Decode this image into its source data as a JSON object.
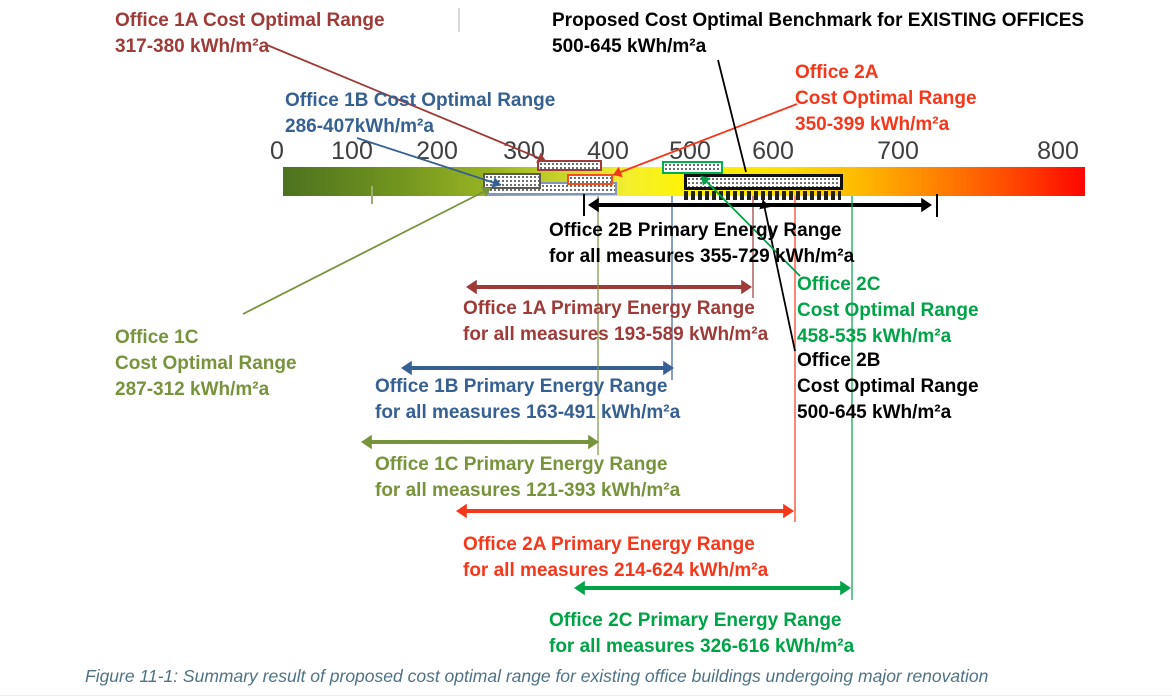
{
  "figure": {
    "caption": "Figure 11-1:  Summary result of proposed cost optimal range for existing office buildings undergoing major renovation"
  },
  "chart_data": {
    "type": "range-bar",
    "title": "Summary result of proposed cost optimal range for existing office buildings undergoing major renovation",
    "axis": {
      "min": 0,
      "max": 800,
      "unit": "kWh/m²a",
      "ticks": [
        0,
        100,
        200,
        300,
        400,
        500,
        600,
        700,
        800
      ]
    },
    "scale_gradient": [
      "#4d721f",
      "#9cb723",
      "#fff500",
      "#ffb900",
      "#fe0500"
    ],
    "benchmark": {
      "name": "Proposed Cost Optimal Benchmark for EXISTING OFFICES",
      "min": 500,
      "max": 645,
      "color": "#000000",
      "label_lines": [
        "Proposed Cost Optimal Benchmark for EXISTING OFFICES",
        "500-645 kWh/m²a"
      ]
    },
    "series": [
      {
        "office": "Office 1A",
        "color": "#9e3a38",
        "box_border": "#9e3a38",
        "cost_optimal": {
          "min": 317,
          "max": 380,
          "label_lines": [
            "Office 1A Cost Optimal Range",
            "317-380 kWh/m²a"
          ]
        },
        "primary_energy": {
          "min": 193,
          "max": 589,
          "label_lines": [
            "Office 1A Primary Energy Range",
            "for all measures 193-589 kWh/m²a"
          ]
        }
      },
      {
        "office": "Office 1B",
        "color": "#366092",
        "box_border": "#8096ba",
        "cost_optimal": {
          "min": 286,
          "max": 407,
          "label_lines": [
            "Office 1B Cost Optimal Range",
            "286-407kWh/m²a"
          ]
        },
        "primary_energy": {
          "min": 163,
          "max": 491,
          "label_lines": [
            "Office 1B Primary Energy Range",
            "for all measures 163-491 kWh/m²a"
          ]
        }
      },
      {
        "office": "Office 1C",
        "color": "#77933c",
        "box_border": "#5a5a52",
        "cost_optimal": {
          "min": 287,
          "max": 312,
          "label_lines": [
            "Office 1C",
            "Cost Optimal Range",
            "287-312 kWh/m²a"
          ]
        },
        "primary_energy": {
          "min": 121,
          "max": 393,
          "label_lines": [
            "Office 1C Primary Energy Range",
            "for all measures 121-393 kWh/m²a"
          ]
        }
      },
      {
        "office": "Office 2A",
        "color": "#f5371c",
        "box_border": "#f5501c",
        "cost_optimal": {
          "min": 350,
          "max": 399,
          "label_lines": [
            "Office 2A",
            "Cost Optimal Range",
            "350-399 kWh/m²a"
          ]
        },
        "primary_energy": {
          "min": 214,
          "max": 624,
          "label_lines": [
            "Office 2A Primary Energy Range",
            "for all measures 214-624 kWh/m²a"
          ]
        }
      },
      {
        "office": "Office 2B",
        "color": "#000000",
        "box_border": "#111111",
        "cost_optimal": {
          "min": 500,
          "max": 645,
          "label_lines": [
            "Office 2B",
            "Cost Optimal Range",
            "500-645 kWh/m²a"
          ]
        },
        "primary_energy": {
          "min": 355,
          "max": 729,
          "label_lines": [
            "Office 2B Primary Energy Range",
            "for all measures 355-729 kWh/m²a"
          ]
        }
      },
      {
        "office": "Office 2C",
        "color": "#00a347",
        "box_border": "#00b050",
        "cost_optimal": {
          "min": 458,
          "max": 535,
          "label_lines": [
            "Office 2C",
            "Cost Optimal Range",
            "458-535 kWh/m²a"
          ]
        },
        "primary_energy": {
          "min": 326,
          "max": 616,
          "label_lines": [
            "Office 2C Primary Energy Range",
            "for all measures 326-616 kWh/m²a"
          ]
        }
      }
    ]
  }
}
